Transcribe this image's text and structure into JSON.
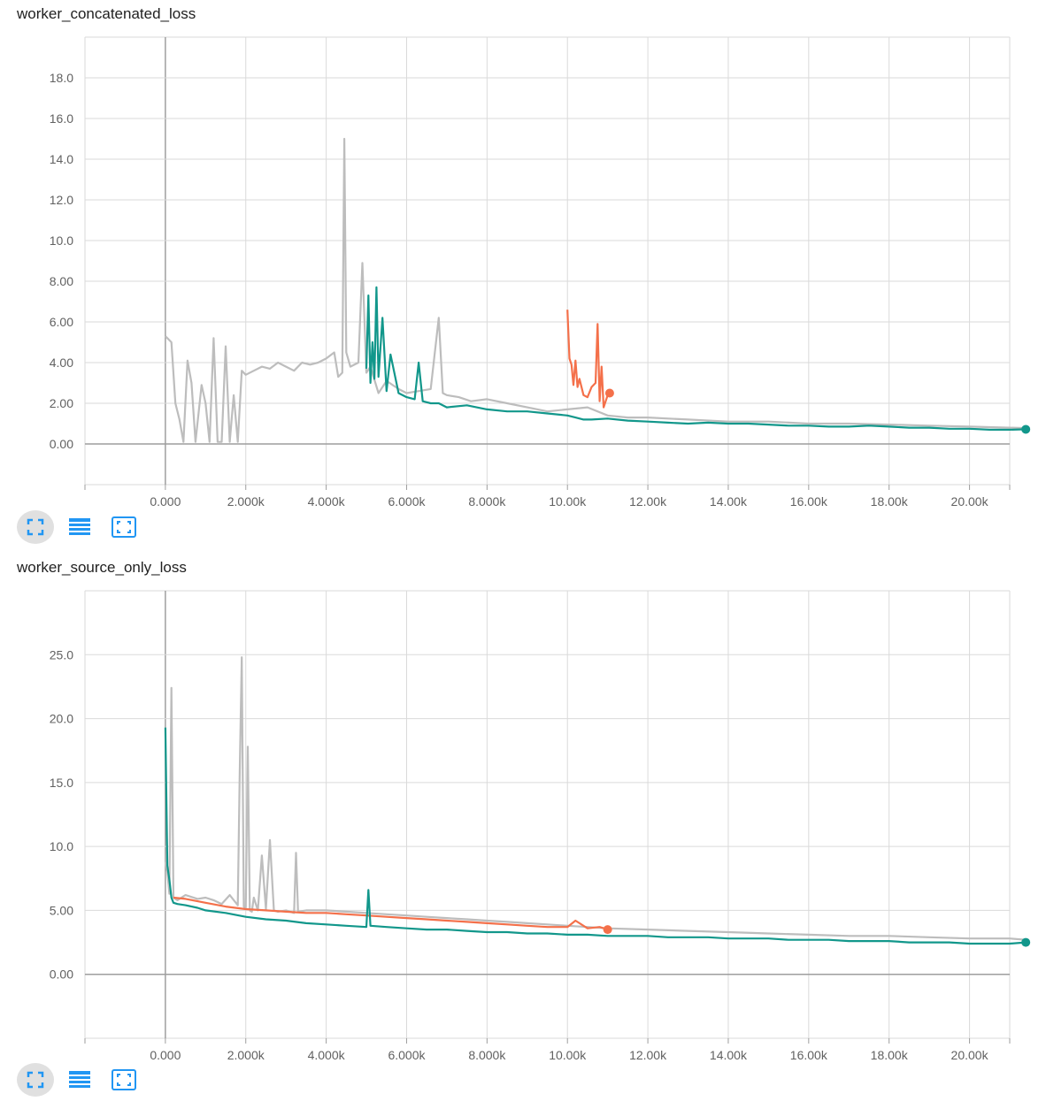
{
  "colors": {
    "gray": "#bdbdbd",
    "teal": "#12978b",
    "orange": "#f4704a",
    "grid": "#dadada",
    "axis": "#9e9e9e"
  },
  "toolbar_icons": [
    "fit-domain-icon",
    "data-series-icon",
    "expand-icon"
  ],
  "charts": [
    {
      "title": "worker_concatenated_loss"
    },
    {
      "title": "worker_source_only_loss"
    }
  ],
  "chart_data": [
    {
      "type": "line",
      "title": "worker_concatenated_loss",
      "xlim": [
        -2000,
        21000
      ],
      "ylim": [
        -2.0,
        20.0
      ],
      "x_ticks": [
        0,
        2000,
        4000,
        6000,
        8000,
        10000,
        12000,
        14000,
        16000,
        18000,
        20000
      ],
      "x_tick_labels": [
        "0.000",
        "2.000k",
        "4.000k",
        "6.000k",
        "8.000k",
        "10.00k",
        "12.00k",
        "14.00k",
        "16.00k",
        "18.00k",
        "20.00k"
      ],
      "y_ticks": [
        0,
        2,
        4,
        6,
        8,
        10,
        12,
        14,
        16,
        18
      ],
      "y_tick_labels": [
        "0.00",
        "2.00",
        "4.00",
        "6.00",
        "8.00",
        "10.0",
        "12.0",
        "14.0",
        "16.0",
        "18.0"
      ],
      "grid": true,
      "series": [
        {
          "color": "gray",
          "x": [
            0,
            150,
            250,
            350,
            450,
            550,
            650,
            750,
            900,
            1000,
            1100,
            1200,
            1300,
            1400,
            1500,
            1600,
            1700,
            1800,
            1900,
            2000,
            2200,
            2400,
            2600,
            2800,
            3000,
            3200,
            3400,
            3600,
            3800,
            4000,
            4200,
            4300,
            4400,
            4450,
            4500,
            4600,
            4800,
            4900,
            5000,
            5100,
            5300,
            5500,
            5800,
            6000,
            6300,
            6600,
            6800,
            6900,
            7000,
            7300,
            7600,
            8000,
            8500,
            9000,
            9500,
            10000,
            10500,
            11000,
            11500,
            12000,
            13000,
            14000,
            15000,
            16000,
            17000,
            18000,
            19000,
            20000,
            21000,
            21400
          ],
          "y": [
            5.3,
            5.0,
            2.0,
            1.2,
            0.1,
            4.1,
            3.0,
            0.1,
            2.9,
            2.0,
            0.1,
            5.2,
            0.1,
            0.1,
            4.8,
            0.1,
            2.4,
            0.1,
            3.6,
            3.4,
            3.6,
            3.8,
            3.7,
            4.0,
            3.8,
            3.6,
            4.0,
            3.9,
            4.0,
            4.2,
            4.5,
            3.3,
            3.5,
            15.0,
            4.5,
            3.8,
            4.0,
            8.9,
            3.5,
            3.8,
            2.5,
            3.1,
            2.7,
            2.5,
            2.6,
            2.7,
            6.2,
            2.5,
            2.4,
            2.3,
            2.1,
            2.2,
            2.0,
            1.8,
            1.6,
            1.7,
            1.8,
            1.4,
            1.3,
            1.3,
            1.2,
            1.1,
            1.1,
            1.0,
            1.0,
            0.95,
            0.9,
            0.85,
            0.8,
            0.78
          ]
        },
        {
          "color": "teal",
          "x": [
            5000,
            5050,
            5100,
            5150,
            5200,
            5250,
            5300,
            5400,
            5500,
            5600,
            5800,
            6000,
            6200,
            6300,
            6400,
            6600,
            6800,
            7000,
            7500,
            8000,
            8500,
            9000,
            9500,
            10000,
            10200,
            10400,
            10600,
            11000,
            11500,
            12000,
            12500,
            13000,
            13500,
            14000,
            14500,
            15000,
            15500,
            16000,
            16500,
            17000,
            17500,
            18000,
            18500,
            19000,
            19500,
            20000,
            20500,
            21000,
            21400
          ],
          "y": [
            3.7,
            7.3,
            3.0,
            5.0,
            3.2,
            7.7,
            3.3,
            6.2,
            2.6,
            4.4,
            2.5,
            2.3,
            2.2,
            4.0,
            2.1,
            2.0,
            2.0,
            1.8,
            1.9,
            1.7,
            1.6,
            1.6,
            1.5,
            1.4,
            1.3,
            1.2,
            1.2,
            1.25,
            1.15,
            1.1,
            1.05,
            1.0,
            1.05,
            1.0,
            1.0,
            0.95,
            0.9,
            0.9,
            0.85,
            0.85,
            0.9,
            0.85,
            0.8,
            0.8,
            0.75,
            0.75,
            0.7,
            0.7,
            0.72
          ]
        },
        {
          "color": "orange",
          "x": [
            10000,
            10050,
            10100,
            10150,
            10200,
            10250,
            10300,
            10400,
            10500,
            10600,
            10700,
            10750,
            10800,
            10850,
            10900,
            11000,
            11050
          ],
          "y": [
            6.6,
            4.2,
            3.9,
            2.9,
            4.1,
            2.8,
            3.2,
            2.4,
            2.3,
            2.8,
            3.0,
            5.9,
            2.1,
            3.8,
            1.8,
            2.4,
            2.5
          ]
        }
      ]
    },
    {
      "type": "line",
      "title": "worker_source_only_loss",
      "xlim": [
        -2000,
        21000
      ],
      "ylim": [
        -5.0,
        30.0
      ],
      "x_ticks": [
        0,
        2000,
        4000,
        6000,
        8000,
        10000,
        12000,
        14000,
        16000,
        18000,
        20000
      ],
      "x_tick_labels": [
        "0.000",
        "2.000k",
        "4.000k",
        "6.000k",
        "8.000k",
        "10.00k",
        "12.00k",
        "14.00k",
        "16.00k",
        "18.00k",
        "20.00k"
      ],
      "y_ticks": [
        0,
        5,
        10,
        15,
        20,
        25
      ],
      "y_tick_labels": [
        "0.00",
        "5.00",
        "10.0",
        "15.0",
        "20.0",
        "25.0"
      ],
      "grid": true,
      "series": [
        {
          "color": "gray",
          "x": [
            0,
            50,
            100,
            150,
            200,
            300,
            500,
            800,
            1000,
            1200,
            1400,
            1600,
            1800,
            1850,
            1900,
            1950,
            2000,
            2050,
            2100,
            2150,
            2200,
            2300,
            2400,
            2500,
            2600,
            2700,
            2800,
            3000,
            3200,
            3250,
            3300,
            3500,
            4000,
            4500,
            5000,
            5500,
            6000,
            6500,
            7000,
            7500,
            8000,
            8500,
            9000,
            9500,
            10000,
            10500,
            11000,
            12000,
            13000,
            14000,
            15000,
            16000,
            17000,
            18000,
            19000,
            20000,
            21000,
            21400
          ],
          "y": [
            8.8,
            8.0,
            6.3,
            22.4,
            6.0,
            5.8,
            6.2,
            5.9,
            6.0,
            5.8,
            5.5,
            6.2,
            5.4,
            15.8,
            24.8,
            5.3,
            5.1,
            17.8,
            5.0,
            4.9,
            6.0,
            5.0,
            9.3,
            5.1,
            10.5,
            5.0,
            4.9,
            5.0,
            4.8,
            9.5,
            4.9,
            5.0,
            5.0,
            4.9,
            4.8,
            4.7,
            4.6,
            4.5,
            4.4,
            4.3,
            4.2,
            4.1,
            4.0,
            3.9,
            3.8,
            3.7,
            3.6,
            3.5,
            3.4,
            3.3,
            3.2,
            3.1,
            3.0,
            3.0,
            2.9,
            2.8,
            2.8,
            2.7
          ]
        },
        {
          "color": "orange",
          "x": [
            200,
            500,
            1000,
            1500,
            2000,
            2500,
            3000,
            3500,
            4000,
            4500,
            5000,
            5500,
            6000,
            6500,
            7000,
            7500,
            8000,
            8500,
            9000,
            9500,
            10000,
            10200,
            10500,
            10800,
            11000
          ],
          "y": [
            6.0,
            5.9,
            5.6,
            5.3,
            5.1,
            5.0,
            4.9,
            4.8,
            4.8,
            4.7,
            4.6,
            4.5,
            4.4,
            4.3,
            4.2,
            4.1,
            4.0,
            3.9,
            3.8,
            3.7,
            3.7,
            4.2,
            3.6,
            3.7,
            3.5
          ]
        },
        {
          "color": "teal",
          "x": [
            0,
            50,
            100,
            150,
            200,
            300,
            500,
            800,
            1000,
            1500,
            2000,
            2500,
            3000,
            3500,
            4000,
            4500,
            5000,
            5050,
            5100,
            5500,
            6000,
            6500,
            7000,
            7500,
            8000,
            8500,
            9000,
            9500,
            10000,
            10500,
            11000,
            11500,
            12000,
            12500,
            13000,
            13500,
            14000,
            14500,
            15000,
            15500,
            16000,
            16500,
            17000,
            17500,
            18000,
            18500,
            19000,
            19500,
            20000,
            20500,
            21000,
            21400
          ],
          "y": [
            19.3,
            8.5,
            7.4,
            6.0,
            5.6,
            5.5,
            5.4,
            5.2,
            5.0,
            4.8,
            4.5,
            4.3,
            4.2,
            4.0,
            3.9,
            3.8,
            3.7,
            6.6,
            3.8,
            3.7,
            3.6,
            3.5,
            3.5,
            3.4,
            3.3,
            3.3,
            3.2,
            3.2,
            3.1,
            3.1,
            3.0,
            3.0,
            3.0,
            2.9,
            2.9,
            2.9,
            2.8,
            2.8,
            2.8,
            2.7,
            2.7,
            2.7,
            2.6,
            2.6,
            2.6,
            2.5,
            2.5,
            2.5,
            2.4,
            2.4,
            2.4,
            2.5
          ]
        }
      ]
    }
  ]
}
